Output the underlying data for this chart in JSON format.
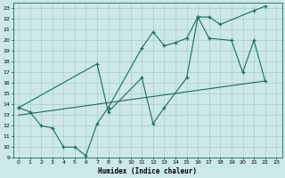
{
  "title": "",
  "xlabel": "Humidex (Indice chaleur)",
  "bg_color": "#cce8e8",
  "line_color": "#1e6b5e",
  "grid_color": "#aacccc",
  "xlim": [
    -0.5,
    23.5
  ],
  "ylim": [
    9,
    23.5
  ],
  "xticks": [
    0,
    1,
    2,
    3,
    4,
    5,
    6,
    7,
    8,
    9,
    10,
    11,
    12,
    13,
    14,
    15,
    16,
    17,
    18,
    19,
    20,
    21,
    22,
    23
  ],
  "yticks": [
    9,
    10,
    11,
    12,
    13,
    14,
    15,
    16,
    17,
    18,
    19,
    20,
    21,
    22,
    23
  ],
  "line1_x": [
    0,
    1,
    2,
    3,
    4,
    5,
    6,
    7,
    8,
    11,
    12,
    13,
    14,
    15,
    16,
    17,
    18,
    21,
    22
  ],
  "line1_y": [
    13.7,
    13.3,
    12.0,
    11.8,
    10.0,
    10.0,
    9.2,
    12.2,
    13.7,
    19.3,
    20.8,
    19.5,
    19.8,
    20.2,
    22.2,
    22.2,
    21.5,
    22.8,
    23.2
  ],
  "line2_x": [
    0,
    7,
    8,
    11,
    12,
    13,
    15,
    16,
    17,
    19,
    20,
    21,
    22
  ],
  "line2_y": [
    13.7,
    17.8,
    13.3,
    16.5,
    12.2,
    13.7,
    16.5,
    22.2,
    20.2,
    20.0,
    17.0,
    20.0,
    16.2
  ],
  "line3_x": [
    0,
    22
  ],
  "line3_y": [
    13.0,
    16.2
  ]
}
